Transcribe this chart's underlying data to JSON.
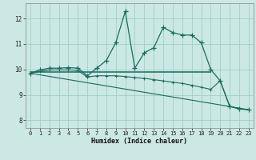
{
  "xlabel": "Humidex (Indice chaleur)",
  "bg_color": "#cce8e4",
  "grid_color": "#9ecfca",
  "line_color": "#1a6b5e",
  "xlim": [
    -0.5,
    23.5
  ],
  "ylim": [
    7.7,
    12.6
  ],
  "xticks": [
    0,
    1,
    2,
    3,
    4,
    5,
    6,
    7,
    8,
    9,
    10,
    11,
    12,
    13,
    14,
    15,
    16,
    17,
    18,
    19,
    20,
    21,
    22,
    23
  ],
  "yticks": [
    8,
    9,
    10,
    11,
    12
  ],
  "line1_x": [
    0,
    1,
    2,
    3,
    4,
    5,
    6,
    7,
    8,
    9,
    10,
    11,
    12,
    13,
    14,
    15,
    16,
    17,
    18,
    19,
    20,
    21,
    22,
    23
  ],
  "line1_y": [
    9.85,
    9.98,
    10.05,
    10.05,
    10.07,
    10.05,
    9.75,
    10.05,
    10.35,
    11.05,
    12.28,
    10.05,
    10.65,
    10.85,
    11.65,
    11.45,
    11.35,
    11.35,
    11.05,
    10.0,
    9.55,
    8.55,
    8.45,
    8.42
  ],
  "line2_x": [
    0,
    19
  ],
  "line2_y": [
    9.9,
    9.9
  ],
  "line3_x": [
    0,
    1,
    2,
    3,
    4,
    5,
    6,
    7,
    8,
    9,
    10,
    11,
    12,
    13,
    14,
    15,
    16,
    17,
    18,
    19,
    20,
    21,
    22,
    23
  ],
  "line3_y": [
    9.85,
    9.92,
    9.98,
    9.98,
    9.98,
    9.96,
    9.7,
    9.75,
    9.75,
    9.75,
    9.72,
    9.68,
    9.65,
    9.6,
    9.55,
    9.5,
    9.45,
    9.38,
    9.3,
    9.22,
    9.55,
    8.55,
    8.45,
    8.42
  ],
  "line4_x": [
    0,
    23
  ],
  "line4_y": [
    9.85,
    8.42
  ]
}
